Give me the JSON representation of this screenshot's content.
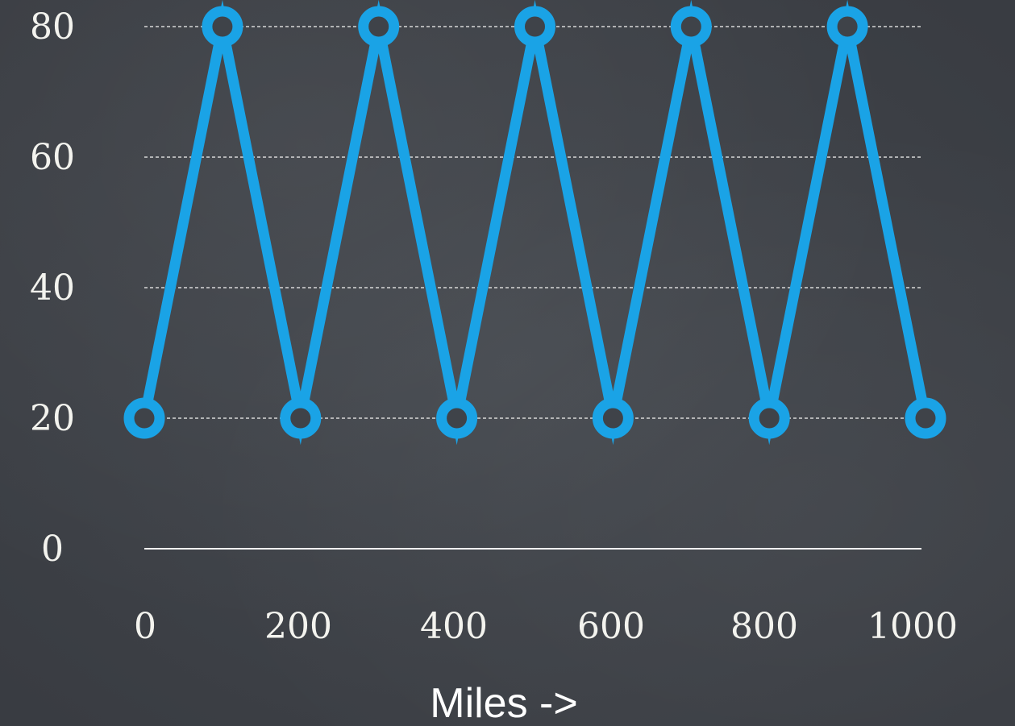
{
  "chart_data": {
    "type": "line",
    "xlabel": "Miles ->",
    "ylabel": "",
    "x_ticks": [
      "0",
      "200",
      "400",
      "600",
      "800",
      "1000"
    ],
    "y_ticks": [
      "0",
      "20",
      "40",
      "60",
      "80"
    ],
    "xlim": [
      0,
      1000
    ],
    "ylim": [
      0,
      80
    ],
    "grid": "horizontal-dashed",
    "series": [
      {
        "x": [
          0,
          100,
          200,
          300,
          400,
          500,
          600,
          700,
          800,
          900,
          1000
        ],
        "values": [
          20,
          80,
          20,
          80,
          20,
          80,
          20,
          80,
          20,
          80,
          20
        ],
        "color": "#1aa3e6"
      }
    ]
  },
  "colors": {
    "background": "#3f4349",
    "line": "#1aa3e6",
    "text": "#ffffff"
  }
}
